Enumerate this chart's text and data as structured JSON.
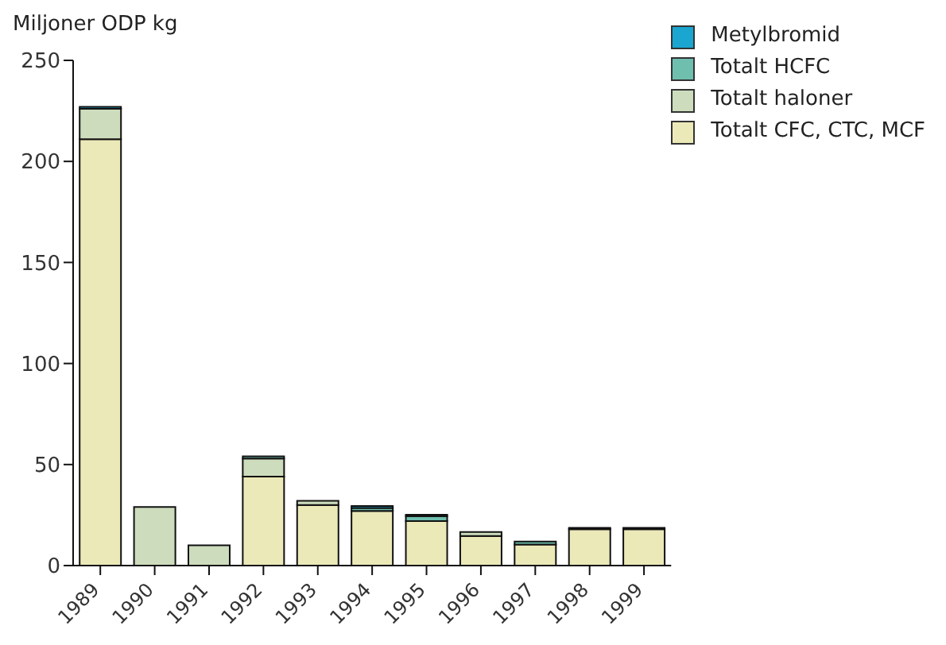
{
  "chart_data": {
    "type": "bar",
    "ylabel": "Miljoner ODP kg",
    "stacked": true,
    "legend": "top right",
    "grid": false,
    "categories": [
      "1989",
      "1990",
      "1991",
      "1992",
      "1993",
      "1994",
      "1995",
      "1996",
      "1997",
      "1998",
      "1999"
    ],
    "ylim": [
      0,
      250
    ],
    "yticks": [
      0,
      50,
      100,
      150,
      200,
      250
    ],
    "series": [
      {
        "name": "Totalt CFC, CTC, MCF",
        "color": "#ece9b9",
        "values": [
          211,
          0,
          0,
          44,
          30,
          27,
          22,
          14.6,
          10.4,
          18,
          18
        ]
      },
      {
        "name": "Totalt haloner",
        "color": "#cddcbc",
        "values": [
          15,
          29,
          10,
          9,
          2,
          0,
          0,
          2,
          0,
          0,
          0
        ]
      },
      {
        "name": "Totalt HCFC",
        "color": "#6fbfae",
        "values": [
          null,
          0,
          0,
          1,
          null,
          1.5,
          2.5,
          0,
          1.5,
          0.7,
          0.7
        ]
      },
      {
        "name": "Metylbromid",
        "color": "#1aa6d0",
        "values": [
          1,
          0,
          0,
          0,
          0,
          1,
          0.7,
          0,
          0,
          0,
          0
        ]
      }
    ]
  }
}
